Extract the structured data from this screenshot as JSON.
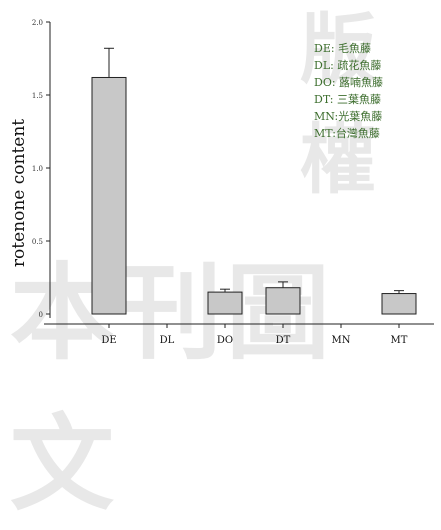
{
  "watermark": {
    "top_text": "版權",
    "bottom_text": "本刊圖文"
  },
  "colors": {
    "bar_fill": "#c8c8c8",
    "bar_stroke": "#222222",
    "axis": "#222222",
    "legend_text": "#3d6e2e",
    "watermark": "#e8e8e8"
  },
  "chart_data": {
    "type": "bar",
    "ylabel": "rotenone content",
    "xlabel": "",
    "ylim": [
      0,
      2.0
    ],
    "y_ticks": [
      0,
      0.5,
      1.0,
      1.5,
      2.0
    ],
    "y_tick_labels": [
      "0",
      "0.5",
      "1.0",
      "1.5",
      "2.0"
    ],
    "categories": [
      "DE",
      "DL",
      "DO",
      "DT",
      "MN",
      "MT"
    ],
    "values": [
      1.62,
      0.0,
      0.15,
      0.18,
      0.0,
      0.14
    ],
    "errors": [
      0.2,
      0.0,
      0.02,
      0.04,
      0.0,
      0.02
    ],
    "grid": false,
    "legend_position": "top-right",
    "legend": [
      "DE: 毛魚藤",
      "DL: 疏花魚藤",
      "DO: 蕗喃魚藤",
      "DT: 三葉魚藤",
      "MN:光葉魚藤",
      "MT:台灣魚藤"
    ]
  }
}
